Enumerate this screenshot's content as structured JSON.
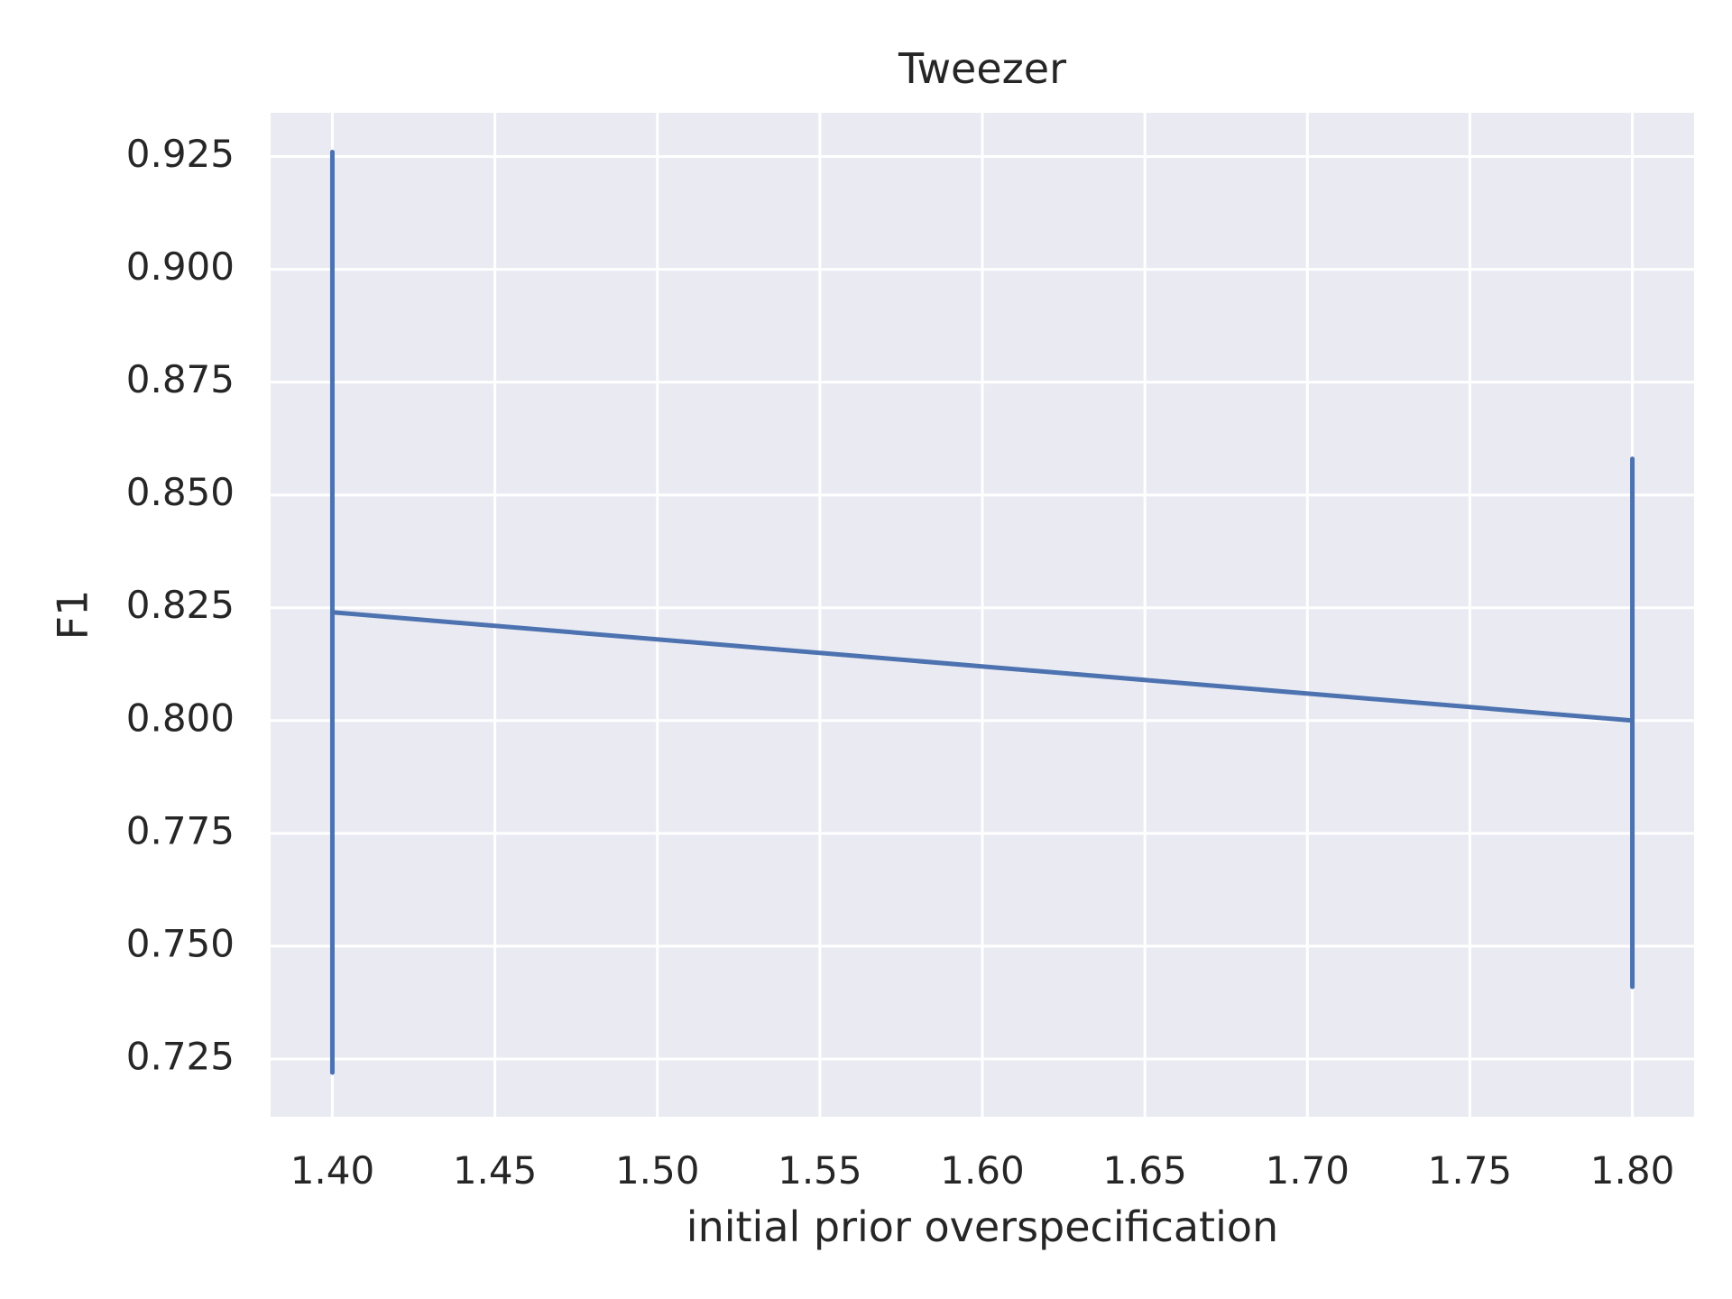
{
  "chart_data": {
    "type": "line",
    "title": "Tweezer",
    "xlabel": "initial prior overspecification",
    "ylabel": "F1",
    "x": [
      1.4,
      1.8
    ],
    "series": [
      {
        "values": [
          0.824,
          0.8
        ],
        "error_low": [
          0.722,
          0.741
        ],
        "error_high": [
          0.926,
          0.858
        ]
      }
    ],
    "xlim": [
      1.381,
      1.819
    ],
    "ylim": [
      0.7122,
      0.9347
    ],
    "xticks": [
      1.4,
      1.45,
      1.5,
      1.55,
      1.6,
      1.65,
      1.7,
      1.75,
      1.8
    ],
    "xtick_labels": [
      "1.40",
      "1.45",
      "1.50",
      "1.55",
      "1.60",
      "1.65",
      "1.70",
      "1.75",
      "1.80"
    ],
    "yticks": [
      0.725,
      0.75,
      0.775,
      0.8,
      0.825,
      0.85,
      0.875,
      0.9,
      0.925
    ],
    "ytick_labels": [
      "0.725",
      "0.750",
      "0.775",
      "0.800",
      "0.825",
      "0.850",
      "0.875",
      "0.900",
      "0.925"
    ],
    "grid": true,
    "colors": {
      "line": "#4c72b0",
      "plot_background": "#eaeaf2",
      "grid": "#ffffff",
      "text": "#262626"
    }
  }
}
